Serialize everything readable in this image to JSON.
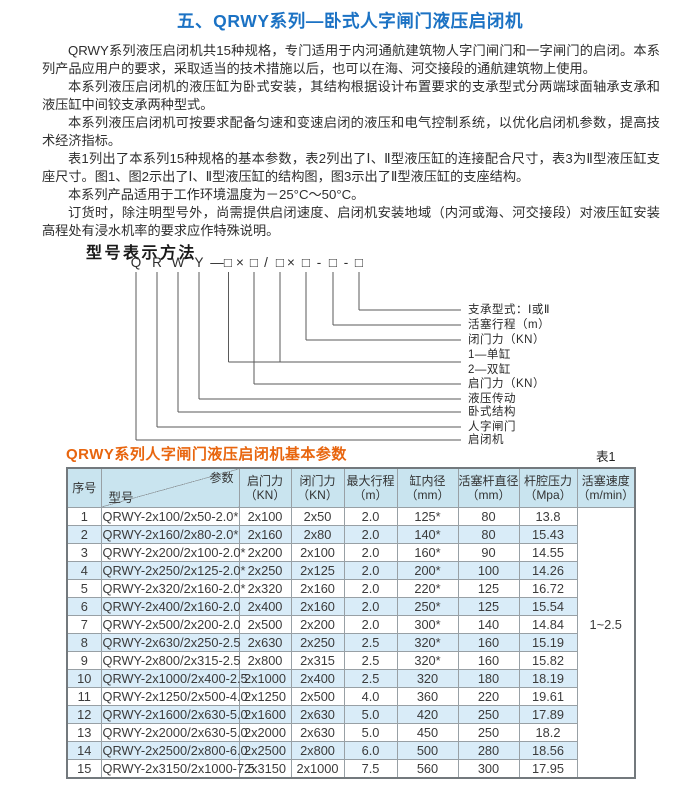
{
  "page": {
    "title": "五、QRWY系列—卧式人字闸门液压启闭机",
    "paragraphs": [
      "QRWY系列液压启闭机共15种规格，专门适用于内河通航建筑物人字门闸门和一字闸门的启闭。本系列产品应用户的要求，采取适当的技术措施以后，也可以在海、河交接段的通航建筑物上使用。",
      "本系列液压启闭机的液压缸为卧式安装，其结构根据设计布置要求的支承型式分两端球面轴承支承和液压缸中间铰支承两种型式。",
      "本系列液压启闭机可按要求配备匀速和变速启闭的液压和电气控制系统，以优化启闭机参数，提高技术经济指标。",
      "表1列出了本系列15种规格的基本参数，表2列出了Ⅰ、Ⅱ型液压缸的连接配合尺寸，表3为Ⅱ型液压缸支座尺寸。图1、图2示出了Ⅰ、Ⅱ型液压缸的结构图，图3示出了Ⅱ型液压缸的支座结构。",
      "本系列产品适用于工作环境温度为－25°C～50°C。",
      "订货时，除注明型号外，尚需提供启闭速度、启闭机安装地域（内河或海、河交接段）对液压缸安装高程处有浸水机率的要求应作特殊说明。"
    ]
  },
  "model": {
    "heading": "型号表示方法",
    "code": "QRWY—□×□/□×□-□-□",
    "labels": [
      "支承型式：Ⅰ或Ⅱ",
      "活塞行程（m）",
      "闭门力（KN）",
      "1—单缸",
      "2—双缸",
      "启门力（KN）",
      "液压传动",
      "卧式结构",
      "人字闸门",
      "启闭机"
    ]
  },
  "table": {
    "title": "QRWY系列人字闸门液压启闭机基本参数",
    "tag": "表1",
    "corner": {
      "param": "参数",
      "model": "型号"
    },
    "col_headers": [
      [
        "序号",
        ""
      ],
      [
        "启门力",
        "（KN）"
      ],
      [
        "闭门力",
        "（KN）"
      ],
      [
        "最大行程",
        "（m）"
      ],
      [
        "缸内径",
        "（mm）"
      ],
      [
        "活塞杆直径",
        "（mm）"
      ],
      [
        "杆腔压力",
        "（Mpa）"
      ],
      [
        "活塞速度",
        "（m/min）"
      ]
    ],
    "rows": [
      [
        "1",
        "QRWY-2x100/2x50-2.0*",
        "2x100",
        "2x50",
        "2.0",
        "125*",
        "80",
        "13.8"
      ],
      [
        "2",
        "QRWY-2x160/2x80-2.0*",
        "2x160",
        "2x80",
        "2.0",
        "140*",
        "80",
        "15.43"
      ],
      [
        "3",
        "QRWY-2x200/2x100-2.0*",
        "2x200",
        "2x100",
        "2.0",
        "160*",
        "90",
        "14.55"
      ],
      [
        "4",
        "QRWY-2x250/2x125-2.0*",
        "2x250",
        "2x125",
        "2.0",
        "200*",
        "100",
        "14.26"
      ],
      [
        "5",
        "QRWY-2x320/2x160-2.0*",
        "2x320",
        "2x160",
        "2.0",
        "220*",
        "125",
        "16.72"
      ],
      [
        "6",
        "QRWY-2x400/2x160-2.0",
        "2x400",
        "2x160",
        "2.0",
        "250*",
        "125",
        "15.54"
      ],
      [
        "7",
        "QRWY-2x500/2x200-2.0",
        "2x500",
        "2x200",
        "2.0",
        "300*",
        "140",
        "14.84"
      ],
      [
        "8",
        "QRWY-2x630/2x250-2.5",
        "2x630",
        "2x250",
        "2.5",
        "320*",
        "160",
        "15.19"
      ],
      [
        "9",
        "QRWY-2x800/2x315-2.5",
        "2x800",
        "2x315",
        "2.5",
        "320*",
        "160",
        "15.82"
      ],
      [
        "10",
        "QRWY-2x1000/2x400-2.5",
        "2x1000",
        "2x400",
        "2.5",
        "320",
        "180",
        "18.19"
      ],
      [
        "11",
        "QRWY-2x1250/2x500-4.0",
        "2x1250",
        "2x500",
        "4.0",
        "360",
        "220",
        "19.61"
      ],
      [
        "12",
        "QRWY-2x1600/2x630-5.0",
        "2x1600",
        "2x630",
        "5.0",
        "420",
        "250",
        "17.89"
      ],
      [
        "13",
        "QRWY-2x2000/2x630-5.0",
        "2x2000",
        "2x630",
        "5.0",
        "450",
        "250",
        "18.2"
      ],
      [
        "14",
        "QRWY-2x2500/2x800-6.0",
        "2x2500",
        "2x800",
        "6.0",
        "500",
        "280",
        "18.56"
      ],
      [
        "15",
        "QRWY-2x3150/2x1000-7.5",
        "2x3150",
        "2x1000",
        "7.5",
        "560",
        "300",
        "17.95"
      ]
    ],
    "speed_value": "1~2.5"
  },
  "colors": {
    "title_blue": "#1b72c4",
    "table_title_orange": "#e8650e",
    "table_header_bg": "#c9e4ef",
    "row_alt_bg": "#d9ecf8"
  }
}
